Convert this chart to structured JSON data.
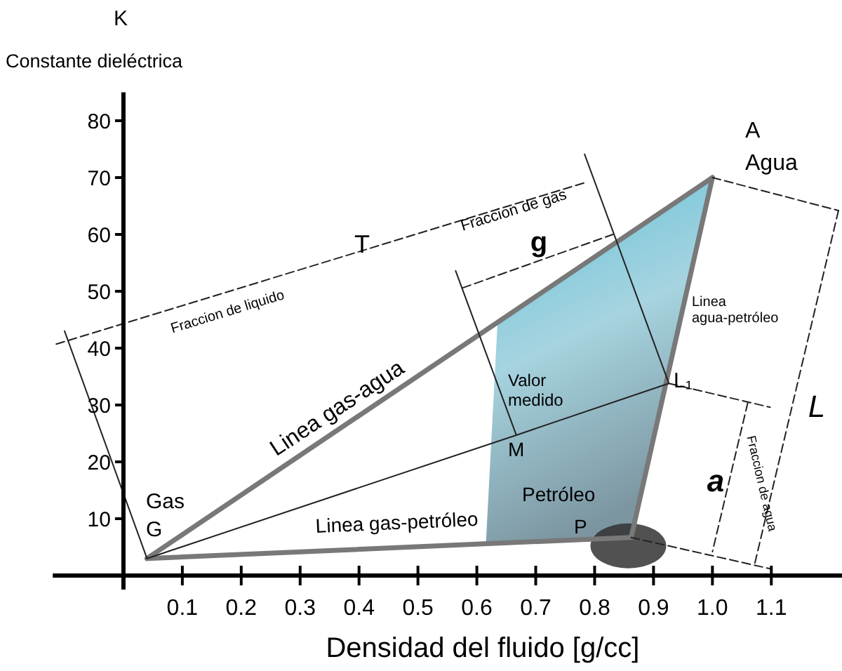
{
  "chart_data": {
    "type": "line",
    "title": "K",
    "ylabel": "Constante dieléctrica",
    "xlabel": "Densidad del fluido [g/cc]",
    "xlim": [
      -0.12,
      1.22
    ],
    "ylim": [
      0,
      85
    ],
    "xticks": [
      0.1,
      0.2,
      0.3,
      0.4,
      0.5,
      0.6,
      0.7,
      0.8,
      0.9,
      {
        "value": 1,
        "label": "1.0"
      },
      1.1
    ],
    "yticks": [
      10,
      20,
      30,
      40,
      50,
      60,
      70,
      80
    ],
    "grid": false,
    "marker": "none",
    "series": [
      {
        "x": [
          0.04,
          1.0
        ],
        "values": [
          3,
          70
        ],
        "color": "#787878",
        "line_style": "solid"
      },
      {
        "x": [
          0.04,
          0.862
        ],
        "values": [
          3,
          6.7
        ],
        "color": "#787878",
        "line_style": "solid"
      },
      {
        "x": [
          0.862,
          1.0
        ],
        "values": [
          6.7,
          70
        ],
        "color": "#787878",
        "line_style": "solid"
      },
      {
        "x": [
          0.04,
          0.667,
          0.926
        ],
        "values": [
          3,
          24.7,
          33.8
        ],
        "color": "#222222",
        "line_style": "solid"
      },
      {
        "x": [
          0.783,
          0.926
        ],
        "values": [
          74.1,
          33.8
        ],
        "color": "#222222",
        "line_style": "solid"
      },
      {
        "x": [
          0.564,
          0.667
        ],
        "values": [
          53.6,
          24.7
        ],
        "color": "#222222",
        "line_style": "solid"
      },
      {
        "x": [
          -0.1,
          0.04
        ],
        "values": [
          43,
          3
        ],
        "color": "#222222",
        "line_style": "solid"
      },
      {
        "x": [
          -0.114,
          0.783
        ],
        "values": [
          40.7,
          69.1
        ],
        "color": "#222222",
        "line_style": "dashed"
      },
      {
        "x": [
          0.576,
          0.831
        ],
        "values": [
          50.6,
          60
        ],
        "color": "#222222",
        "line_style": "dashed"
      },
      {
        "x": [
          1.0,
          1.214
        ],
        "values": [
          70,
          64.2
        ],
        "color": "#222222",
        "line_style": "dashed"
      },
      {
        "x": [
          1.214,
          1.071
        ],
        "values": [
          64.2,
          1.7
        ],
        "color": "#222222",
        "line_style": "dashed"
      },
      {
        "x": [
          0.862,
          1.098
        ],
        "values": [
          6.7,
          1.2
        ],
        "color": "#222222",
        "line_style": "dashed"
      },
      {
        "x": [
          0.926,
          1.098
        ],
        "values": [
          33.8,
          29.6
        ],
        "color": "#222222",
        "line_style": "dashed"
      },
      {
        "x": [
          1.06,
          1.0
        ],
        "values": [
          30.4,
          4.2
        ],
        "color": "#222222",
        "line_style": "dashed"
      }
    ],
    "annotations": [
      "A",
      "Agua",
      "Gas",
      "G",
      "Linea gas-agua",
      "Linea gas-petróleo",
      "Linea\nagua-petróleo",
      "Valor\nmedido",
      "M",
      "L₁",
      "Petróleo",
      "P",
      "T",
      "Fraccion de liquido",
      "g",
      "Fraccion de gas",
      "L",
      "a",
      "Fraccion de agua"
    ]
  }
}
